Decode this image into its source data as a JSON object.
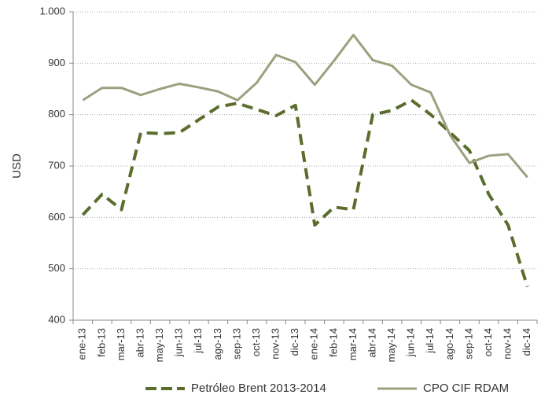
{
  "chart_data": {
    "type": "line",
    "ylabel": "USD",
    "categories": [
      "ene-13",
      "feb-13",
      "mar-13",
      "abr-13",
      "may-13",
      "jun-13",
      "jul-13",
      "ago-13",
      "sep-13",
      "oct-13",
      "nov-13",
      "dic-13",
      "ene-14",
      "feb-14",
      "mar-14",
      "abr-14",
      "may-14",
      "jun-14",
      "jul-14",
      "ago-14",
      "sep-14",
      "oct-14",
      "nov-14",
      "dic-14"
    ],
    "series": [
      {
        "name": "Petróleo Brent 2013-2014",
        "color": "#5b6d2d",
        "dashed": true,
        "values": [
          605,
          645,
          615,
          765,
          763,
          765,
          790,
          815,
          822,
          810,
          798,
          818,
          585,
          620,
          615,
          800,
          808,
          828,
          800,
          765,
          730,
          645,
          585,
          465
        ]
      },
      {
        "name": "CPO CIF RDAM",
        "color": "#9ba17e",
        "dashed": false,
        "values": [
          828,
          852,
          852,
          838,
          850,
          860,
          853,
          845,
          828,
          862,
          916,
          902,
          858,
          905,
          955,
          906,
          895,
          858,
          843,
          760,
          706,
          720,
          723,
          678
        ]
      }
    ],
    "ylim": [
      400,
      1000
    ],
    "yticks": [
      400,
      500,
      600,
      700,
      800,
      900,
      {
        "value": 1000,
        "label": "1.000"
      }
    ],
    "grid": true,
    "legend": "bottom"
  }
}
